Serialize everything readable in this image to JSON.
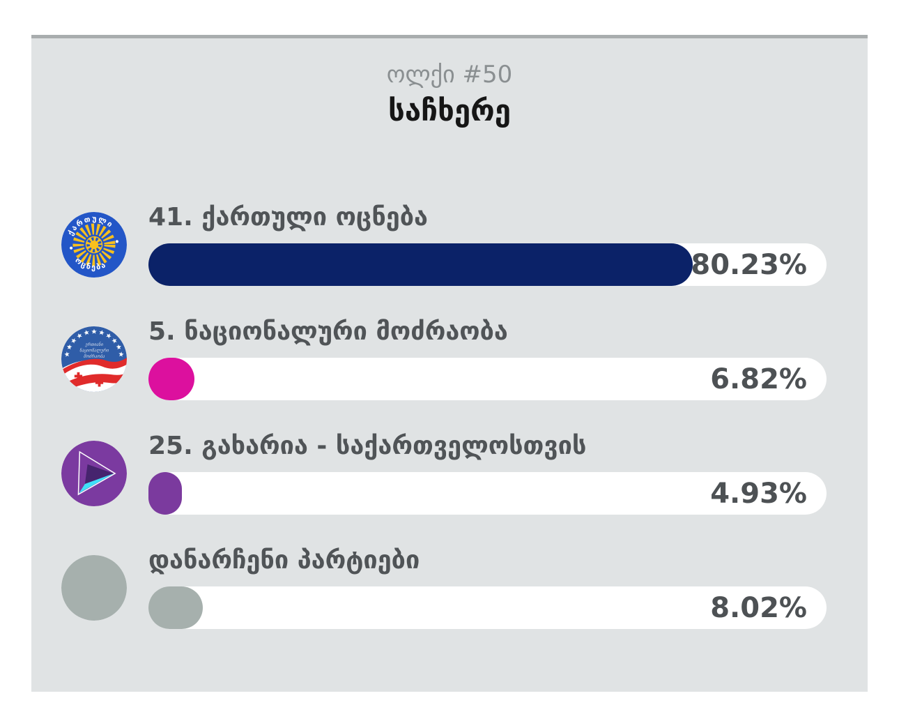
{
  "page": {
    "background": "#ffffff",
    "card_background": "#e0e3e4",
    "card_top_border": "#a9adae",
    "track_color": "#ffffff",
    "text_color": "#505457"
  },
  "header": {
    "district_label": "ოლქი #50",
    "district_name": "საჩხერე"
  },
  "results": [
    {
      "label": "41. ქართული ოცნება",
      "percent": 80.23,
      "percent_label": "80.23%",
      "color": "#0b2268",
      "logo_icon": "georgian-dream-logo-icon"
    },
    {
      "label": "5. ნაციონალური მოძრაობა",
      "percent": 6.82,
      "percent_label": "6.82%",
      "color": "#dc109e",
      "logo_icon": "united-national-movement-logo-icon"
    },
    {
      "label": "25. გახარია - საქართველოსთვის",
      "percent": 4.93,
      "percent_label": "4.93%",
      "color": "#7b3a9e",
      "logo_icon": "for-georgia-logo-icon"
    },
    {
      "label": "დანარჩენი პარტიები",
      "percent": 8.02,
      "percent_label": "8.02%",
      "color": "#a6b0ad",
      "logo_icon": "other-parties-logo-icon"
    }
  ],
  "chart_data": {
    "type": "bar",
    "orientation": "horizontal",
    "title": "ოლქი #50 საჩხერე",
    "categories": [
      "41. ქართული ოცნება",
      "5. ნაციონალური მოძრაობა",
      "25. გახარია - საქართველოსთვის",
      "დანარჩენი პარტიები"
    ],
    "values": [
      80.23,
      6.82,
      4.93,
      8.02
    ],
    "value_labels": [
      "80.23%",
      "6.82%",
      "4.93%",
      "8.02%"
    ],
    "bar_colors": [
      "#0b2268",
      "#dc109e",
      "#7b3a9e",
      "#a6b0ad"
    ],
    "xlim": [
      0,
      100
    ],
    "xlabel": "",
    "ylabel": "",
    "grid": false,
    "legend": false
  }
}
